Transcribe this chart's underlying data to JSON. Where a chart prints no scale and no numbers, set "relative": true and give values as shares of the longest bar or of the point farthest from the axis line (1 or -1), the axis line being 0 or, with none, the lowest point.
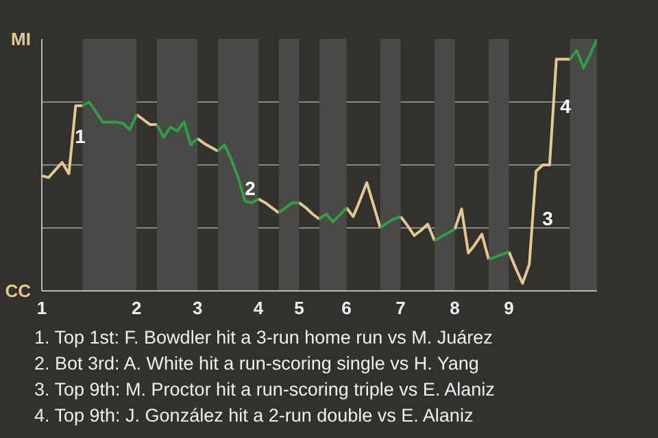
{
  "chart_data": {
    "type": "line",
    "relative": true,
    "categories": [
      "1",
      null,
      null,
      null,
      null,
      null,
      null,
      null,
      null,
      null,
      null,
      null,
      null,
      null,
      "2",
      null,
      null,
      null,
      null,
      null,
      null,
      null,
      null,
      "3",
      null,
      null,
      null,
      null,
      null,
      null,
      null,
      null,
      "4",
      null,
      null,
      null,
      null,
      null,
      "5",
      null,
      null,
      null,
      null,
      null,
      null,
      "6",
      null,
      null,
      null,
      null,
      null,
      null,
      null,
      "7",
      null,
      null,
      null,
      null,
      null,
      null,
      null,
      "8",
      null,
      null,
      null,
      null,
      null,
      null,
      null,
      "9",
      null,
      null,
      null,
      null,
      null,
      null,
      null,
      null,
      null,
      null,
      null,
      null,
      null
    ],
    "grid": "y",
    "marker": "none",
    "line_style": "solid",
    "series": [
      {
        "color": "#e3c98f",
        "values": [
          0.457,
          0.45,
          0.48,
          0.51,
          0.465,
          0.735,
          0.735,
          null,
          null,
          null,
          null,
          null,
          null,
          null,
          0.7,
          0.68,
          0.66,
          0.66,
          null,
          null,
          null,
          null,
          null,
          0.605,
          0.585,
          0.57,
          0.555,
          null,
          null,
          null,
          null,
          null,
          0.365,
          0.35,
          0.33,
          0.31,
          null,
          null,
          0.35,
          0.33,
          0.305,
          0.285,
          null,
          null,
          null,
          0.33,
          0.295,
          0.36,
          0.43,
          0.34,
          0.25,
          null,
          null,
          0.295,
          0.26,
          0.22,
          0.24,
          0.265,
          0.2,
          null,
          null,
          0.245,
          0.325,
          0.15,
          0.185,
          0.225,
          0.125,
          null,
          null,
          0.155,
          0.09,
          0.03,
          0.105,
          0.475,
          0.5,
          0.5,
          0.92,
          0.92,
          0.92,
          null,
          null,
          null,
          null
        ]
      },
      {
        "color": "#2ea043",
        "values": [
          null,
          null,
          null,
          null,
          null,
          null,
          0.735,
          0.75,
          0.71,
          0.67,
          0.67,
          0.67,
          0.665,
          0.64,
          0.7,
          null,
          null,
          0.66,
          0.61,
          0.65,
          0.635,
          0.67,
          0.58,
          0.605,
          null,
          null,
          0.555,
          0.58,
          0.52,
          0.45,
          0.357,
          0.35,
          0.365,
          null,
          null,
          0.31,
          0.33,
          0.35,
          0.35,
          null,
          null,
          0.285,
          0.305,
          0.275,
          0.3,
          0.33,
          null,
          null,
          null,
          null,
          0.25,
          0.27,
          0.285,
          0.295,
          null,
          null,
          null,
          null,
          0.2,
          0.215,
          0.23,
          0.245,
          null,
          null,
          null,
          null,
          0.125,
          0.135,
          0.145,
          0.155,
          null,
          null,
          null,
          null,
          null,
          null,
          null,
          null,
          0.92,
          0.955,
          0.885,
          0.94,
          1
        ]
      }
    ],
    "annotations": [
      "MI",
      "CC",
      "1",
      "2",
      "3",
      "4",
      "1. Top 1st: F. Bowdler hit a 3-run home run vs M. Juárez",
      "2. Bot 3rd: A. White hit a run-scoring single vs H. Yang",
      "3. Top 9th: M. Proctor hit a run-scoring triple vs E. Alaniz",
      "4. Top 9th: J. González hit a 2-run double vs E. Alaniz"
    ]
  }
}
